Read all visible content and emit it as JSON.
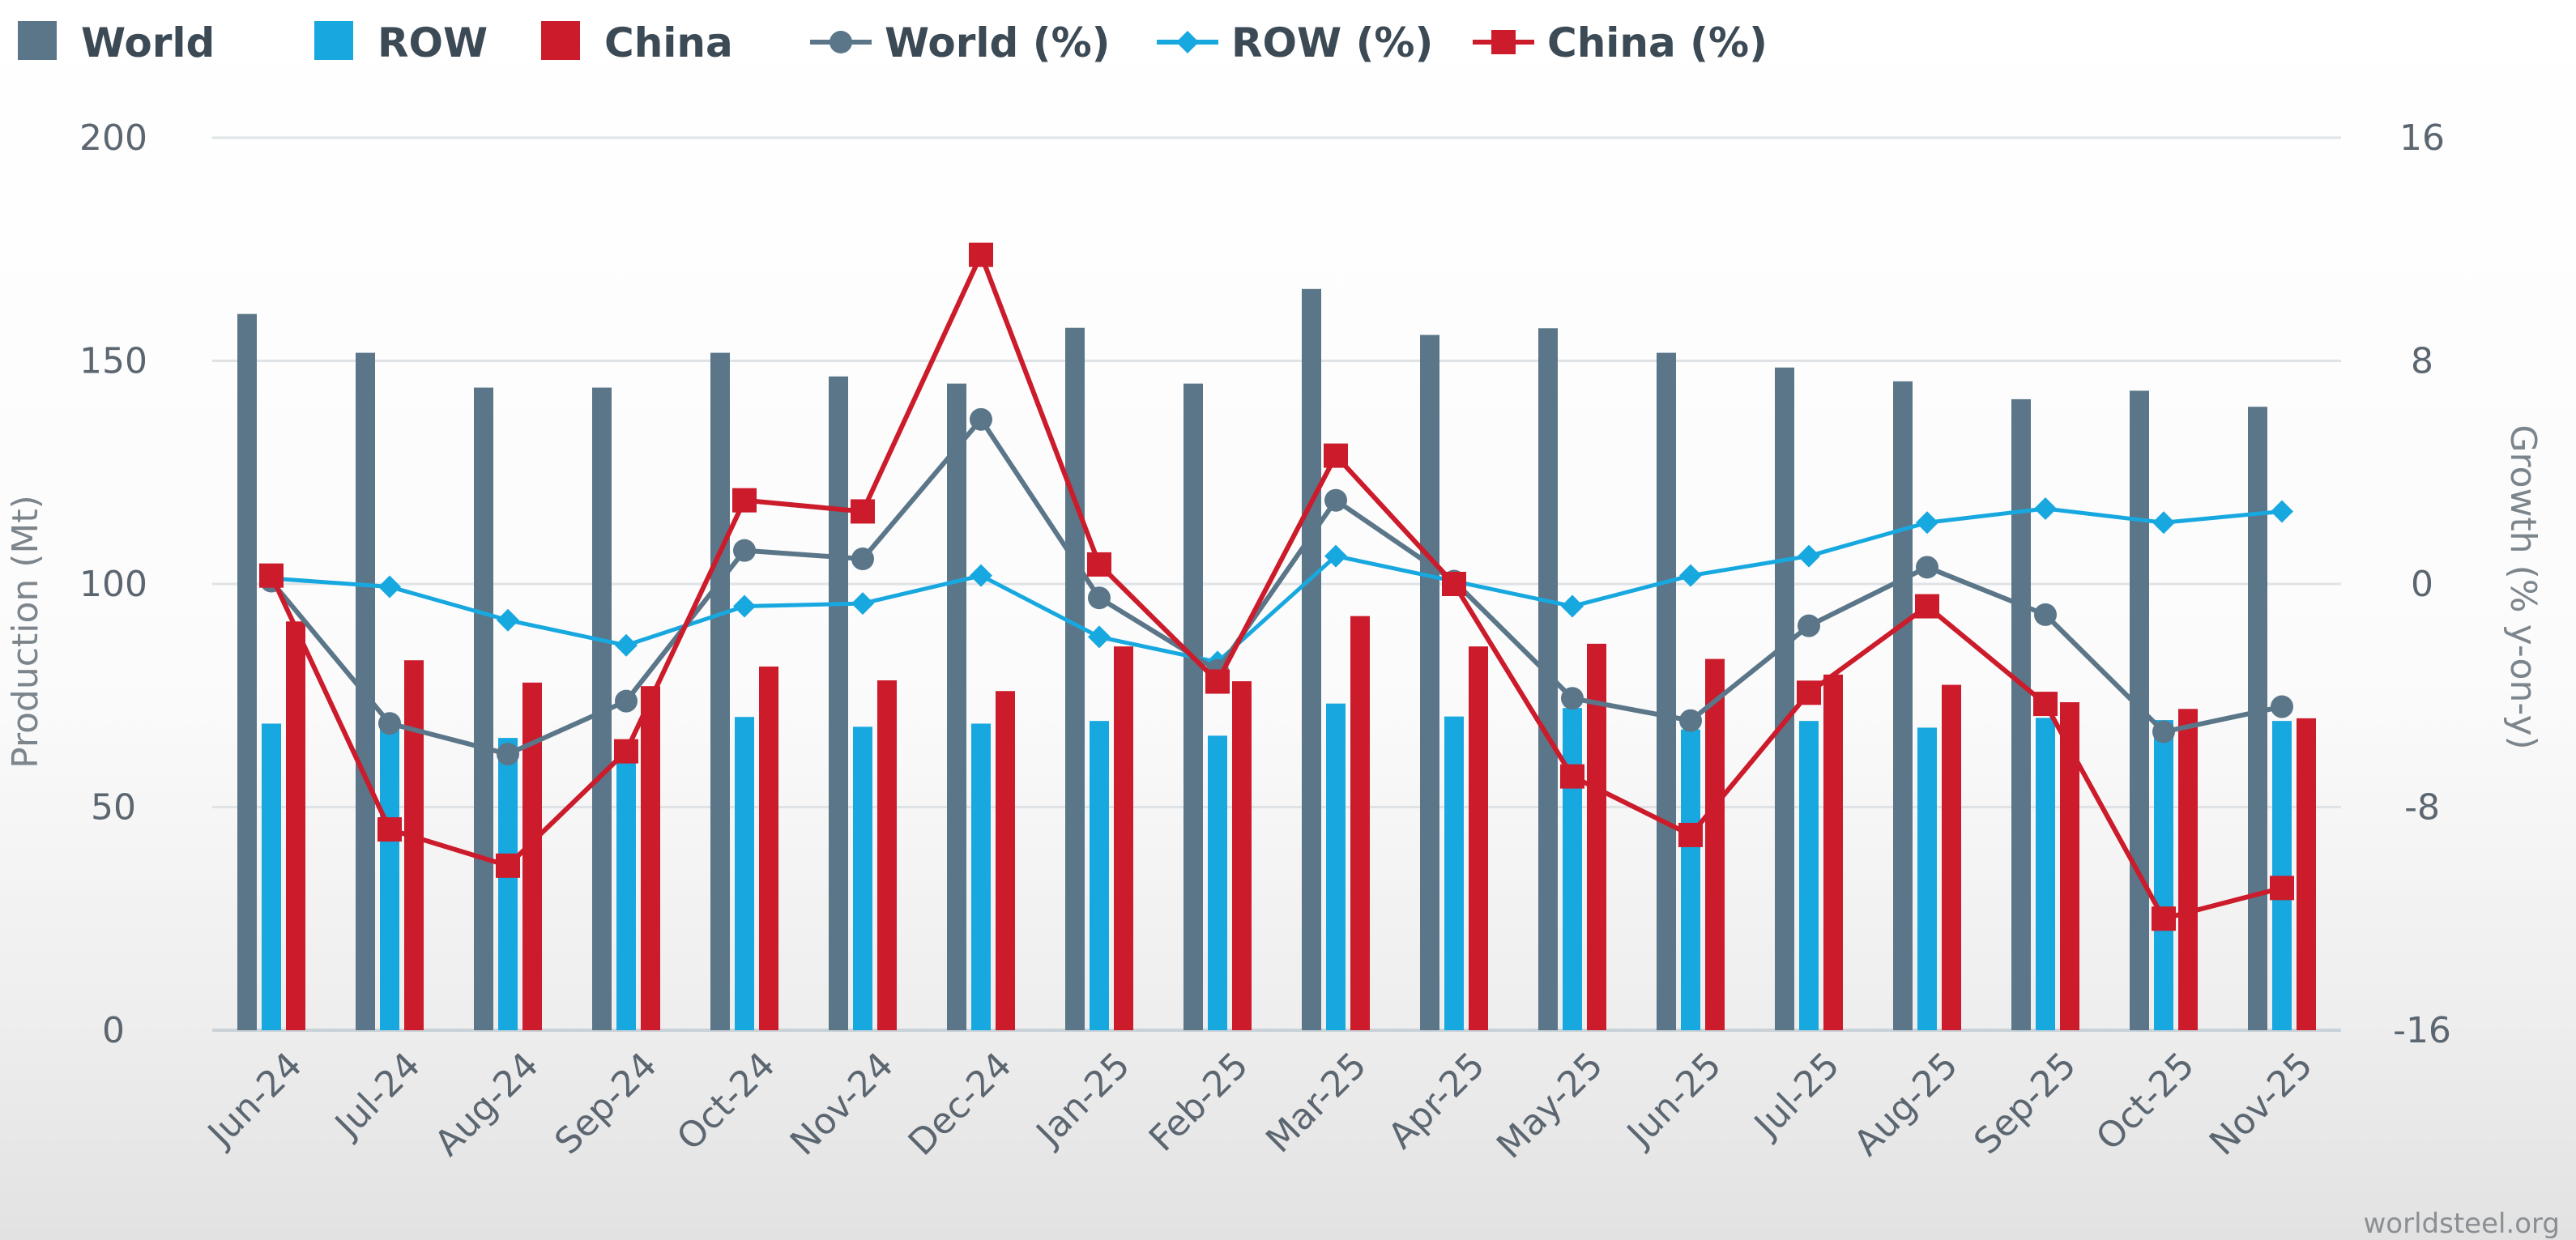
{
  "chart_data": {
    "type": "bar",
    "categories": [
      "Jun-24",
      "Jul-24",
      "Aug-24",
      "Sep-24",
      "Oct-24",
      "Nov-24",
      "Dec-24",
      "Jan-25",
      "Feb-25",
      "Mar-25",
      "Apr-25",
      "May-25",
      "Jun-25",
      "Jul-25",
      "Aug-25",
      "Sep-25",
      "Oct-25",
      "Nov-25"
    ],
    "series": [
      {
        "name": "World",
        "kind": "bar",
        "axis": "left",
        "color": "#5a7688",
        "values": [
          160.5,
          151.8,
          144.0,
          144.0,
          151.8,
          146.5,
          144.9,
          157.4,
          144.9,
          166.1,
          155.8,
          157.3,
          151.8,
          148.5,
          145.4,
          141.4,
          143.3,
          139.7
        ]
      },
      {
        "name": "ROW",
        "kind": "bar",
        "axis": "left",
        "color": "#18a8e0",
        "values": [
          68.7,
          68.6,
          65.5,
          62.3,
          70.2,
          68.0,
          68.7,
          69.3,
          66.0,
          73.2,
          70.3,
          72.2,
          67.4,
          69.3,
          67.8,
          70.0,
          69.5,
          69.3
        ]
      },
      {
        "name": "China",
        "kind": "bar",
        "axis": "left",
        "color": "#cc1b2b",
        "values": [
          91.6,
          82.9,
          77.9,
          77.1,
          81.5,
          78.4,
          76.0,
          86.0,
          78.2,
          92.8,
          86.0,
          86.6,
          83.2,
          79.7,
          77.4,
          73.5,
          72.0,
          69.9
        ]
      },
      {
        "name": "World (%)",
        "kind": "line",
        "axis": "right",
        "color": "#5a7688",
        "marker": "circle",
        "values": [
          0.1,
          -5.0,
          -6.1,
          -4.2,
          1.2,
          0.9,
          5.9,
          -0.5,
          -3.1,
          3.0,
          0.1,
          -4.1,
          -4.9,
          -1.5,
          0.6,
          -1.1,
          -5.3,
          -4.4
        ]
      },
      {
        "name": "ROW (%)",
        "kind": "line",
        "axis": "right",
        "color": "#18a8e0",
        "marker": "diamond",
        "values": [
          0.2,
          -0.1,
          -1.3,
          -2.2,
          -0.8,
          -0.7,
          0.3,
          -1.9,
          -2.8,
          1.0,
          0.1,
          -0.8,
          0.3,
          1.0,
          2.2,
          2.7,
          2.2,
          2.6
        ]
      },
      {
        "name": "China (%)",
        "kind": "line",
        "axis": "right",
        "color": "#cc1b2b",
        "marker": "square",
        "values": [
          0.3,
          -8.8,
          -10.1,
          -6.0,
          3.0,
          2.6,
          11.8,
          0.7,
          -3.5,
          4.6,
          0.0,
          -6.9,
          -9.0,
          -3.9,
          -0.8,
          -4.3,
          -12.0,
          -10.9
        ]
      }
    ],
    "xlabel": "",
    "ylabel": "Production (Mt)",
    "y2label": "Growth (% y-on-y)",
    "ylim": [
      0,
      200
    ],
    "yticks": [
      0,
      50,
      100,
      150,
      200
    ],
    "y2lim": [
      -16,
      16
    ],
    "y2ticks": [
      -16,
      -8,
      0,
      8,
      16
    ],
    "grid": true,
    "legend_position": "top-left",
    "credit": "worldsteel.org"
  }
}
